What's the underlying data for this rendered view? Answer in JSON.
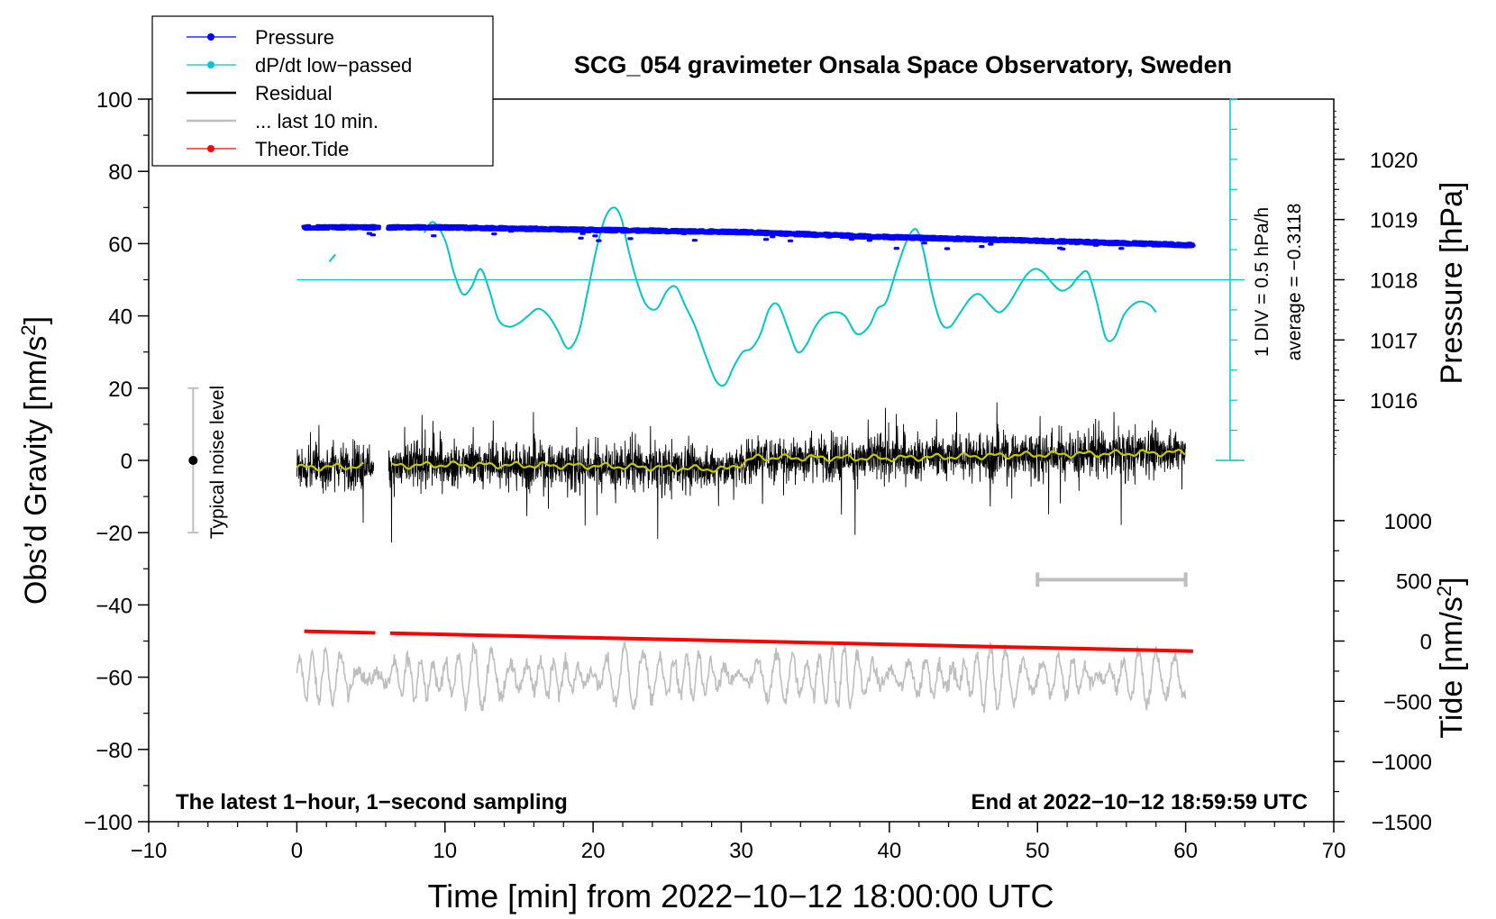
{
  "chart_data": {
    "type": "line",
    "title": "SCG_054 gravimeter Onsala Space Observatory, Sweden",
    "xlabel": "Time [min] from 2022−10−12 18:00:00 UTC",
    "ylabel_main": "Obs’d Gravity [nm/s",
    "ylabel_main_sup": "2",
    "ylabel_main_close": "]",
    "ylabel_pressure": "Pressure [hPa]",
    "ylabel_tide": "Tide [nm/s",
    "ylabel_tide_sup": "2",
    "ylabel_tide_close": "]",
    "xlim": [
      -10,
      70
    ],
    "ylim": [
      -100,
      100
    ],
    "x_ticks": [
      -10,
      0,
      10,
      20,
      30,
      40,
      50,
      60,
      70
    ],
    "x_tick_labels": [
      "−10",
      "0",
      "10",
      "20",
      "30",
      "40",
      "50",
      "60",
      "70"
    ],
    "y_ticks": [
      -100,
      -80,
      -60,
      -40,
      -20,
      0,
      20,
      40,
      60,
      80,
      100
    ],
    "y_tick_labels": [
      "−100",
      "−80",
      "−60",
      "−40",
      "−20",
      "0",
      "20",
      "40",
      "60",
      "80",
      "100"
    ],
    "pressure_axis": {
      "ticks": [
        1016,
        1017,
        1018,
        1019,
        1020
      ],
      "tick_labels": [
        "1016",
        "1017",
        "1018",
        "1019",
        "1020"
      ],
      "ref_value": 1018,
      "ref_gravity": 50,
      "gravity_per_hPa": 16.67
    },
    "tide_axis": {
      "ticks": [
        -1500,
        -1000,
        -500,
        0,
        500,
        1000
      ],
      "tick_labels": [
        "−1500",
        "−1000",
        "−500",
        "0",
        "500",
        "1000"
      ],
      "ref_value": 0,
      "ref_gravity": -50,
      "gravity_per_unit": 0.03333
    },
    "legend": {
      "position": "top-left",
      "entries": [
        {
          "label": "Pressure",
          "color": "#0000ff",
          "marker": "dot"
        },
        {
          "label": "dP/dt low−passed",
          "color": "#00c8c8",
          "marker": "dot"
        },
        {
          "label": "Residual",
          "color": "#000000",
          "marker": "none"
        },
        {
          "label": "... last 10 min.",
          "color": "#bebebe",
          "marker": "none"
        },
        {
          "label": "Theor.Tide",
          "color": "#ff0000",
          "marker": "dot"
        }
      ]
    },
    "annotations": {
      "noise_label": "Typical noise level",
      "noise_bar": {
        "x": -7,
        "y_center": 0,
        "half_range": 20
      },
      "dpdt_scale_1": "1 DIV = 0.5 hPa/h",
      "dpdt_scale_2": "average = −0.3118",
      "dpdt_axis": {
        "x": 63,
        "y_zero_line": 50,
        "y_bottom": 0,
        "y_top": 100,
        "div_count": 12
      },
      "bottom_left": "The latest 1−hour, 1−second sampling",
      "bottom_right": "End at 2022−10−12 18:59:59 UTC",
      "last10_bar": {
        "x_start": 50,
        "x_end": 60,
        "y": -33
      }
    },
    "series": [
      {
        "name": "Pressure",
        "color": "#0000ff",
        "gap": [
          5.5,
          6.2
        ],
        "x": [
          0.5,
          10,
          20,
          30,
          40,
          50,
          60.5
        ],
        "values": [
          64.5,
          64.5,
          63.8,
          63.2,
          61.8,
          60.8,
          59.6
        ]
      },
      {
        "name": "dP/dt low-passed",
        "color": "#00c8c8",
        "x_pre": [
          2.2,
          2.6
        ],
        "values_pre": [
          55,
          57
        ],
        "x": [
          8.6,
          9.2,
          10.0,
          10.6,
          11.2,
          11.8,
          12.4,
          13.0,
          13.6,
          14.3,
          15.0,
          15.6,
          16.3,
          17.0,
          17.6,
          18.3,
          19.0,
          19.6,
          20.2,
          20.8,
          21.4,
          21.9,
          22.4,
          23.0,
          23.6,
          24.3,
          25.0,
          25.6,
          26.2,
          26.9,
          27.6,
          28.3,
          28.9,
          29.5,
          30.1,
          30.7,
          31.3,
          31.9,
          32.5,
          33.2,
          33.8,
          34.4,
          35.0,
          35.6,
          36.3,
          37.0,
          37.8,
          38.6,
          39.2,
          39.8,
          40.5,
          41.2,
          41.8,
          42.3,
          42.9,
          43.5,
          44.1,
          44.8,
          45.5,
          46.1,
          46.8,
          47.4,
          48.0,
          48.6,
          49.2,
          49.8,
          50.4,
          51.0,
          51.6,
          52.2,
          52.8,
          53.4,
          54.0,
          54.6,
          55.2,
          55.8,
          56.4,
          57.0,
          57.6,
          58.0
        ],
        "values": [
          63,
          66,
          61,
          52,
          46,
          48,
          53,
          47,
          39,
          37,
          38,
          40,
          42,
          40,
          36,
          31,
          35,
          46,
          58,
          67,
          70,
          67,
          58,
          49,
          43,
          42,
          47,
          48,
          43,
          37,
          29,
          22,
          21,
          26,
          30,
          31,
          35,
          42,
          43,
          36,
          30,
          32,
          37,
          40,
          41,
          40,
          35,
          37,
          42,
          44,
          53,
          61,
          64,
          58,
          46,
          38,
          37,
          41,
          45,
          46,
          43,
          41,
          43,
          47,
          51,
          53,
          52,
          49,
          47,
          48,
          51,
          52,
          44,
          34,
          34,
          40,
          43,
          44,
          43,
          41
        ]
      },
      {
        "name": "Residual",
        "color": "#000000",
        "gap": [
          5.2,
          6.2
        ],
        "noise_amp": 4.5,
        "x": [
          0,
          10,
          20,
          29,
          31,
          40,
          50,
          60
        ],
        "values": [
          -2,
          -1.2,
          -1.5,
          -2.5,
          0.8,
          0.6,
          1.6,
          2.2
        ]
      },
      {
        "name": "Smoothed residual",
        "color": "#c8c800",
        "x": [
          0,
          10,
          20,
          29,
          31,
          40,
          50,
          60
        ],
        "values": [
          -2,
          -1.2,
          -1.5,
          -2.5,
          0.8,
          0.6,
          1.6,
          2.2
        ]
      },
      {
        "name": "... last 10 min.",
        "color": "#bebebe",
        "center": -60,
        "amp_range": [
          -77,
          -46
        ]
      },
      {
        "name": "Theor.Tide",
        "color": "#ff0000",
        "gap": [
          5.3,
          6.3
        ],
        "x": [
          0.5,
          60.5
        ],
        "values": [
          -47.3,
          -52.8
        ]
      }
    ]
  }
}
